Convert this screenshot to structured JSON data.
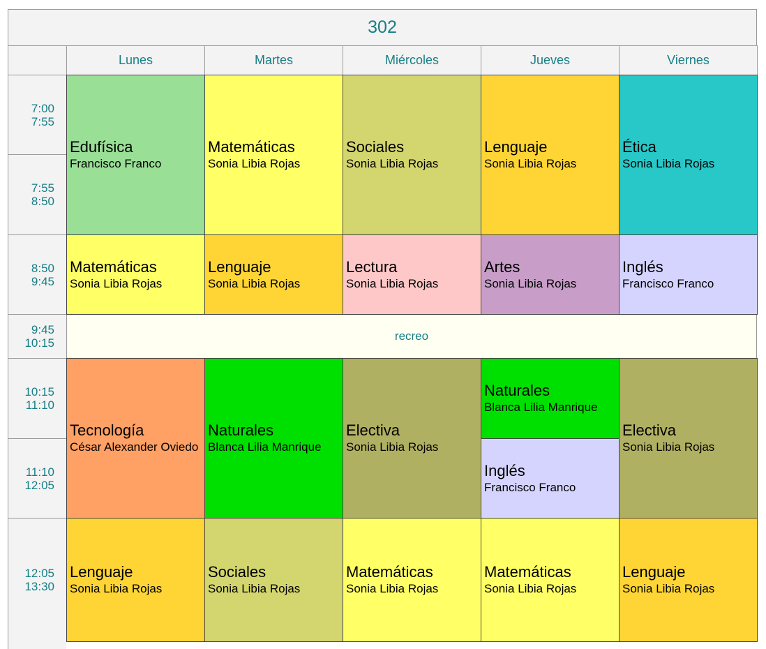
{
  "title": "302",
  "days": [
    "Lunes",
    "Martes",
    "Miércoles",
    "Jueves",
    "Viernes"
  ],
  "times": [
    {
      "start": "7:00",
      "end": "7:55"
    },
    {
      "start": "7:55",
      "end": "8:50"
    },
    {
      "start": "8:50",
      "end": "9:45"
    },
    {
      "start": "9:45",
      "end": "10:15"
    },
    {
      "start": "10:15",
      "end": "11:10"
    },
    {
      "start": "11:10",
      "end": "12:05"
    },
    {
      "start": "12:05",
      "end": "13:30"
    }
  ],
  "break_label": "recreo",
  "colors": {
    "header_text": "#167e86",
    "header_bg": "#f3f3f3",
    "break_bg": "#fffff2"
  },
  "classes": [
    {
      "day": 0,
      "slot": 0,
      "span": 2,
      "subject": "Edufísica",
      "teacher": "Francisco Franco",
      "color": "#99df96"
    },
    {
      "day": 1,
      "slot": 0,
      "span": 2,
      "subject": "Matemáticas",
      "teacher": "Sonia Libia Rojas",
      "color": "#ffff66"
    },
    {
      "day": 2,
      "slot": 0,
      "span": 2,
      "subject": "Sociales",
      "teacher": "Sonia Libia Rojas",
      "color": "#d3d56e"
    },
    {
      "day": 3,
      "slot": 0,
      "span": 2,
      "subject": "Lenguaje",
      "teacher": "Sonia Libia Rojas",
      "color": "#ffd535"
    },
    {
      "day": 4,
      "slot": 0,
      "span": 2,
      "subject": "Ética",
      "teacher": "Sonia Libia Rojas",
      "color": "#29c8c8"
    },
    {
      "day": 0,
      "slot": 2,
      "span": 1,
      "subject": "Matemáticas",
      "teacher": "Sonia Libia Rojas",
      "color": "#ffff66"
    },
    {
      "day": 1,
      "slot": 2,
      "span": 1,
      "subject": "Lenguaje",
      "teacher": "Sonia Libia Rojas",
      "color": "#ffd535"
    },
    {
      "day": 2,
      "slot": 2,
      "span": 1,
      "subject": "Lectura",
      "teacher": "Sonia Libia Rojas",
      "color": "#ffc8c8"
    },
    {
      "day": 3,
      "slot": 2,
      "span": 1,
      "subject": "Artes",
      "teacher": "Sonia Libia Rojas",
      "color": "#c89ec8"
    },
    {
      "day": 4,
      "slot": 2,
      "span": 1,
      "subject": "Inglés",
      "teacher": "Francisco Franco",
      "color": "#d4d4ff"
    },
    {
      "day": 0,
      "slot": 4,
      "span": 2,
      "subject": "Tecnología",
      "teacher": "César Alexander Oviedo",
      "color": "#ffa064"
    },
    {
      "day": 1,
      "slot": 4,
      "span": 2,
      "subject": "Naturales",
      "teacher": "Blanca Lilia Manrique",
      "color": "#00e000"
    },
    {
      "day": 2,
      "slot": 4,
      "span": 2,
      "subject": "Electiva",
      "teacher": "Sonia Libia Rojas",
      "color": "#b0b062"
    },
    {
      "day": 3,
      "slot": 4,
      "span": 1,
      "subject": "Naturales",
      "teacher": "Blanca Lilia Manrique",
      "color": "#00e000"
    },
    {
      "day": 3,
      "slot": 5,
      "span": 1,
      "subject": "Inglés",
      "teacher": "Francisco Franco",
      "color": "#d4d4ff"
    },
    {
      "day": 4,
      "slot": 4,
      "span": 2,
      "subject": "Electiva",
      "teacher": "Sonia Libia Rojas",
      "color": "#b0b062"
    },
    {
      "day": 0,
      "slot": 6,
      "span": 1,
      "subject": "Lenguaje",
      "teacher": "Sonia Libia Rojas",
      "color": "#ffd535"
    },
    {
      "day": 1,
      "slot": 6,
      "span": 1,
      "subject": "Sociales",
      "teacher": "Sonia Libia Rojas",
      "color": "#d3d56e"
    },
    {
      "day": 2,
      "slot": 6,
      "span": 1,
      "subject": "Matemáticas",
      "teacher": "Sonia Libia Rojas",
      "color": "#ffff66"
    },
    {
      "day": 3,
      "slot": 6,
      "span": 1,
      "subject": "Matemáticas",
      "teacher": "Sonia Libia Rojas",
      "color": "#ffff66"
    },
    {
      "day": 4,
      "slot": 6,
      "span": 1,
      "subject": "Lenguaje",
      "teacher": "Sonia Libia Rojas",
      "color": "#ffd535"
    }
  ]
}
